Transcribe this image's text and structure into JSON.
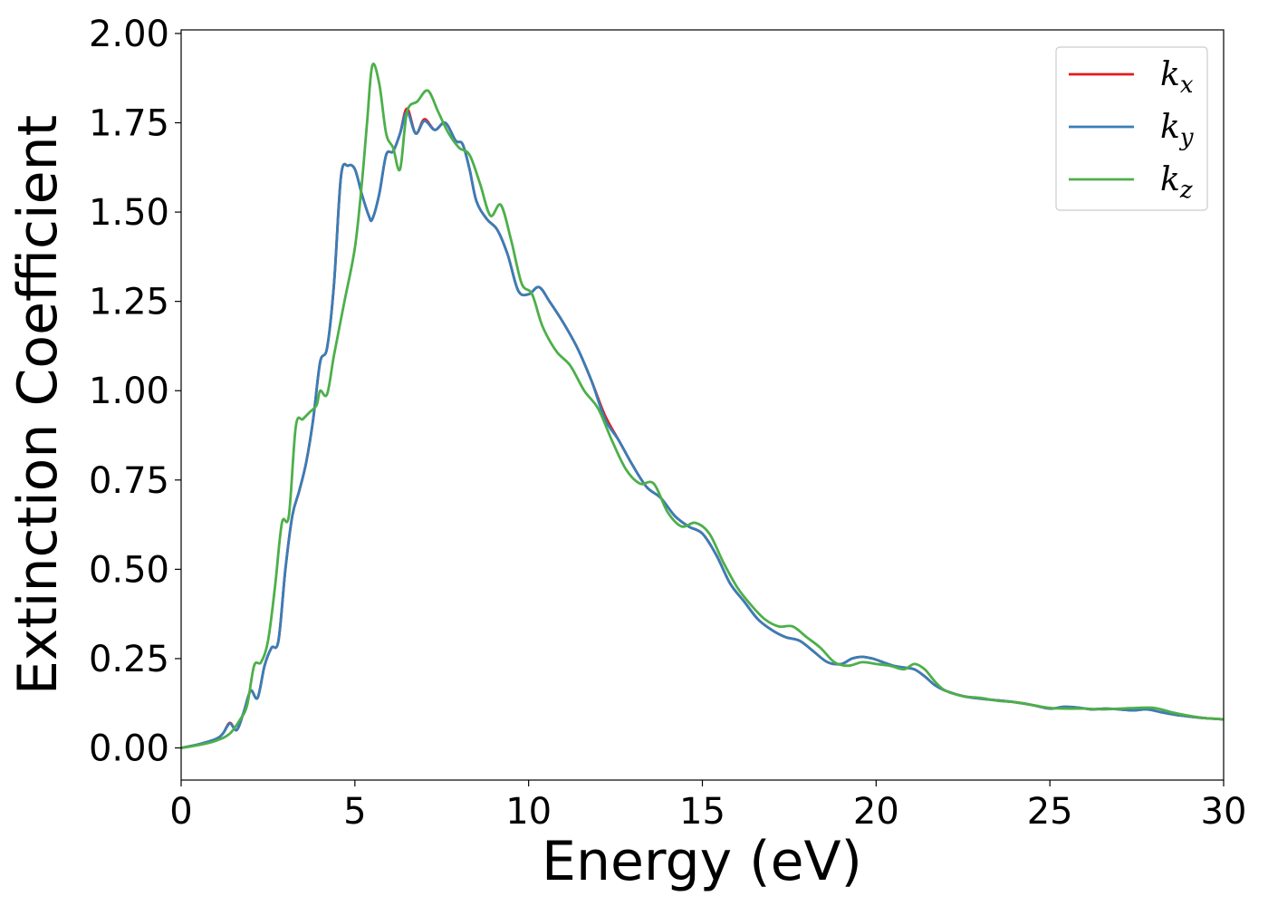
{
  "chart_data": {
    "type": "line",
    "title": "",
    "xlabel": "Energy (eV)",
    "ylabel": "Extinction Coefficient",
    "xlim": [
      0,
      30
    ],
    "ylim": [
      -0.09,
      2.01
    ],
    "xticks": [
      0,
      5,
      10,
      15,
      20,
      25,
      30
    ],
    "xtick_labels": [
      "0",
      "5",
      "10",
      "15",
      "20",
      "25",
      "30"
    ],
    "yticks": [
      0,
      0.25,
      0.5,
      0.75,
      1.0,
      1.25,
      1.5,
      1.75,
      2.0
    ],
    "ytick_labels": [
      "0.00",
      "0.25",
      "0.50",
      "0.75",
      "1.00",
      "1.25",
      "1.50",
      "1.75",
      "2.00"
    ],
    "grid": false,
    "legend_position": "top-right",
    "series": [
      {
        "name": "k",
        "subscript": "x",
        "color": "#e41a1c",
        "x": [
          0,
          0.5,
          1.0,
          1.2,
          1.4,
          1.6,
          1.8,
          2.0,
          2.2,
          2.4,
          2.6,
          2.8,
          3.0,
          3.2,
          3.4,
          3.6,
          3.8,
          4.0,
          4.2,
          4.4,
          4.6,
          4.8,
          5.0,
          5.2,
          5.4,
          5.5,
          5.7,
          5.9,
          6.1,
          6.3,
          6.5,
          6.75,
          7.0,
          7.3,
          7.6,
          7.9,
          8.1,
          8.3,
          8.5,
          8.8,
          9.1,
          9.4,
          9.7,
          10.0,
          10.3,
          10.6,
          11.0,
          11.4,
          11.8,
          12.2,
          12.6,
          13.0,
          13.4,
          13.8,
          14.2,
          14.6,
          15.0,
          15.4,
          15.8,
          16.2,
          16.6,
          17.0,
          17.4,
          17.8,
          18.2,
          18.6,
          19.0,
          19.3,
          19.6,
          19.9,
          20.2,
          20.5,
          20.8,
          21.1,
          21.4,
          21.7,
          22.0,
          22.5,
          23.0,
          23.5,
          24.0,
          24.5,
          25.0,
          25.4,
          25.8,
          26.2,
          26.6,
          27.0,
          27.4,
          27.8,
          28.2,
          28.6,
          29.0,
          29.5,
          30.0
        ],
        "values": [
          0.0,
          0.01,
          0.025,
          0.04,
          0.07,
          0.05,
          0.1,
          0.16,
          0.14,
          0.23,
          0.28,
          0.3,
          0.5,
          0.65,
          0.72,
          0.8,
          0.92,
          1.08,
          1.12,
          1.3,
          1.6,
          1.63,
          1.62,
          1.55,
          1.49,
          1.48,
          1.55,
          1.66,
          1.67,
          1.72,
          1.79,
          1.72,
          1.76,
          1.73,
          1.75,
          1.7,
          1.69,
          1.62,
          1.53,
          1.48,
          1.45,
          1.38,
          1.28,
          1.27,
          1.29,
          1.25,
          1.19,
          1.12,
          1.03,
          0.93,
          0.86,
          0.79,
          0.73,
          0.7,
          0.65,
          0.62,
          0.6,
          0.54,
          0.46,
          0.41,
          0.36,
          0.33,
          0.31,
          0.3,
          0.27,
          0.24,
          0.235,
          0.25,
          0.255,
          0.25,
          0.24,
          0.23,
          0.225,
          0.22,
          0.2,
          0.175,
          0.16,
          0.145,
          0.138,
          0.133,
          0.128,
          0.12,
          0.11,
          0.115,
          0.113,
          0.108,
          0.11,
          0.108,
          0.105,
          0.108,
          0.1,
          0.093,
          0.088,
          0.083,
          0.08
        ]
      },
      {
        "name": "k",
        "subscript": "y",
        "color": "#377eb8",
        "x": [
          0,
          0.5,
          1.0,
          1.2,
          1.4,
          1.6,
          1.8,
          2.0,
          2.2,
          2.4,
          2.6,
          2.8,
          3.0,
          3.2,
          3.4,
          3.6,
          3.8,
          4.0,
          4.2,
          4.4,
          4.6,
          4.8,
          5.0,
          5.2,
          5.4,
          5.5,
          5.7,
          5.9,
          6.1,
          6.3,
          6.5,
          6.75,
          7.0,
          7.3,
          7.6,
          7.9,
          8.1,
          8.3,
          8.5,
          8.8,
          9.1,
          9.4,
          9.7,
          10.0,
          10.3,
          10.6,
          11.0,
          11.4,
          11.8,
          12.2,
          12.6,
          13.0,
          13.4,
          13.8,
          14.2,
          14.6,
          15.0,
          15.4,
          15.8,
          16.2,
          16.6,
          17.0,
          17.4,
          17.8,
          18.2,
          18.6,
          19.0,
          19.3,
          19.6,
          19.9,
          20.2,
          20.5,
          20.8,
          21.1,
          21.4,
          21.7,
          22.0,
          22.5,
          23.0,
          23.5,
          24.0,
          24.5,
          25.0,
          25.4,
          25.8,
          26.2,
          26.6,
          27.0,
          27.4,
          27.8,
          28.2,
          28.6,
          29.0,
          29.5,
          30.0
        ],
        "values": [
          0.0,
          0.01,
          0.025,
          0.04,
          0.068,
          0.05,
          0.1,
          0.16,
          0.14,
          0.23,
          0.28,
          0.3,
          0.5,
          0.65,
          0.72,
          0.8,
          0.92,
          1.08,
          1.12,
          1.3,
          1.6,
          1.63,
          1.62,
          1.55,
          1.49,
          1.48,
          1.55,
          1.66,
          1.67,
          1.72,
          1.78,
          1.72,
          1.755,
          1.73,
          1.75,
          1.7,
          1.69,
          1.62,
          1.53,
          1.48,
          1.45,
          1.38,
          1.28,
          1.27,
          1.29,
          1.25,
          1.19,
          1.12,
          1.03,
          0.92,
          0.86,
          0.79,
          0.73,
          0.7,
          0.65,
          0.62,
          0.6,
          0.54,
          0.46,
          0.41,
          0.36,
          0.33,
          0.31,
          0.3,
          0.27,
          0.24,
          0.235,
          0.25,
          0.255,
          0.25,
          0.24,
          0.23,
          0.225,
          0.22,
          0.2,
          0.175,
          0.16,
          0.145,
          0.138,
          0.133,
          0.128,
          0.12,
          0.11,
          0.115,
          0.113,
          0.108,
          0.11,
          0.108,
          0.105,
          0.108,
          0.1,
          0.093,
          0.088,
          0.083,
          0.08
        ]
      },
      {
        "name": "k",
        "subscript": "z",
        "color": "#4daf4a",
        "x": [
          0,
          0.5,
          1.0,
          1.4,
          1.7,
          1.9,
          2.1,
          2.3,
          2.5,
          2.7,
          2.9,
          3.1,
          3.3,
          3.5,
          3.7,
          3.9,
          4.0,
          4.2,
          4.4,
          4.7,
          5.0,
          5.2,
          5.35,
          5.5,
          5.7,
          5.9,
          6.1,
          6.3,
          6.5,
          6.8,
          7.1,
          7.4,
          7.7,
          8.0,
          8.3,
          8.6,
          8.9,
          9.2,
          9.5,
          9.8,
          10.1,
          10.4,
          10.8,
          11.2,
          11.6,
          12.0,
          12.4,
          12.8,
          13.2,
          13.6,
          14.0,
          14.4,
          14.8,
          15.2,
          15.6,
          16.0,
          16.4,
          16.8,
          17.2,
          17.6,
          18.0,
          18.4,
          18.8,
          19.2,
          19.6,
          20.0,
          20.4,
          20.8,
          21.1,
          21.4,
          21.7,
          22.0,
          22.5,
          23.0,
          23.5,
          24.0,
          24.5,
          25.0,
          25.5,
          26.0,
          26.5,
          27.0,
          27.5,
          28.0,
          28.5,
          29.0,
          29.5,
          30.0
        ],
        "values": [
          0.0,
          0.008,
          0.02,
          0.04,
          0.08,
          0.12,
          0.23,
          0.24,
          0.3,
          0.45,
          0.63,
          0.65,
          0.9,
          0.92,
          0.94,
          0.96,
          1.0,
          0.99,
          1.1,
          1.25,
          1.4,
          1.58,
          1.75,
          1.91,
          1.86,
          1.72,
          1.68,
          1.62,
          1.78,
          1.81,
          1.84,
          1.78,
          1.72,
          1.68,
          1.66,
          1.58,
          1.49,
          1.52,
          1.42,
          1.3,
          1.27,
          1.18,
          1.11,
          1.07,
          1.0,
          0.95,
          0.86,
          0.78,
          0.74,
          0.74,
          0.66,
          0.62,
          0.63,
          0.6,
          0.52,
          0.45,
          0.4,
          0.36,
          0.34,
          0.34,
          0.31,
          0.28,
          0.24,
          0.23,
          0.24,
          0.235,
          0.23,
          0.22,
          0.235,
          0.22,
          0.185,
          0.16,
          0.145,
          0.14,
          0.132,
          0.128,
          0.12,
          0.112,
          0.11,
          0.11,
          0.108,
          0.11,
          0.112,
          0.112,
          0.1,
          0.09,
          0.083,
          0.08
        ]
      }
    ]
  }
}
